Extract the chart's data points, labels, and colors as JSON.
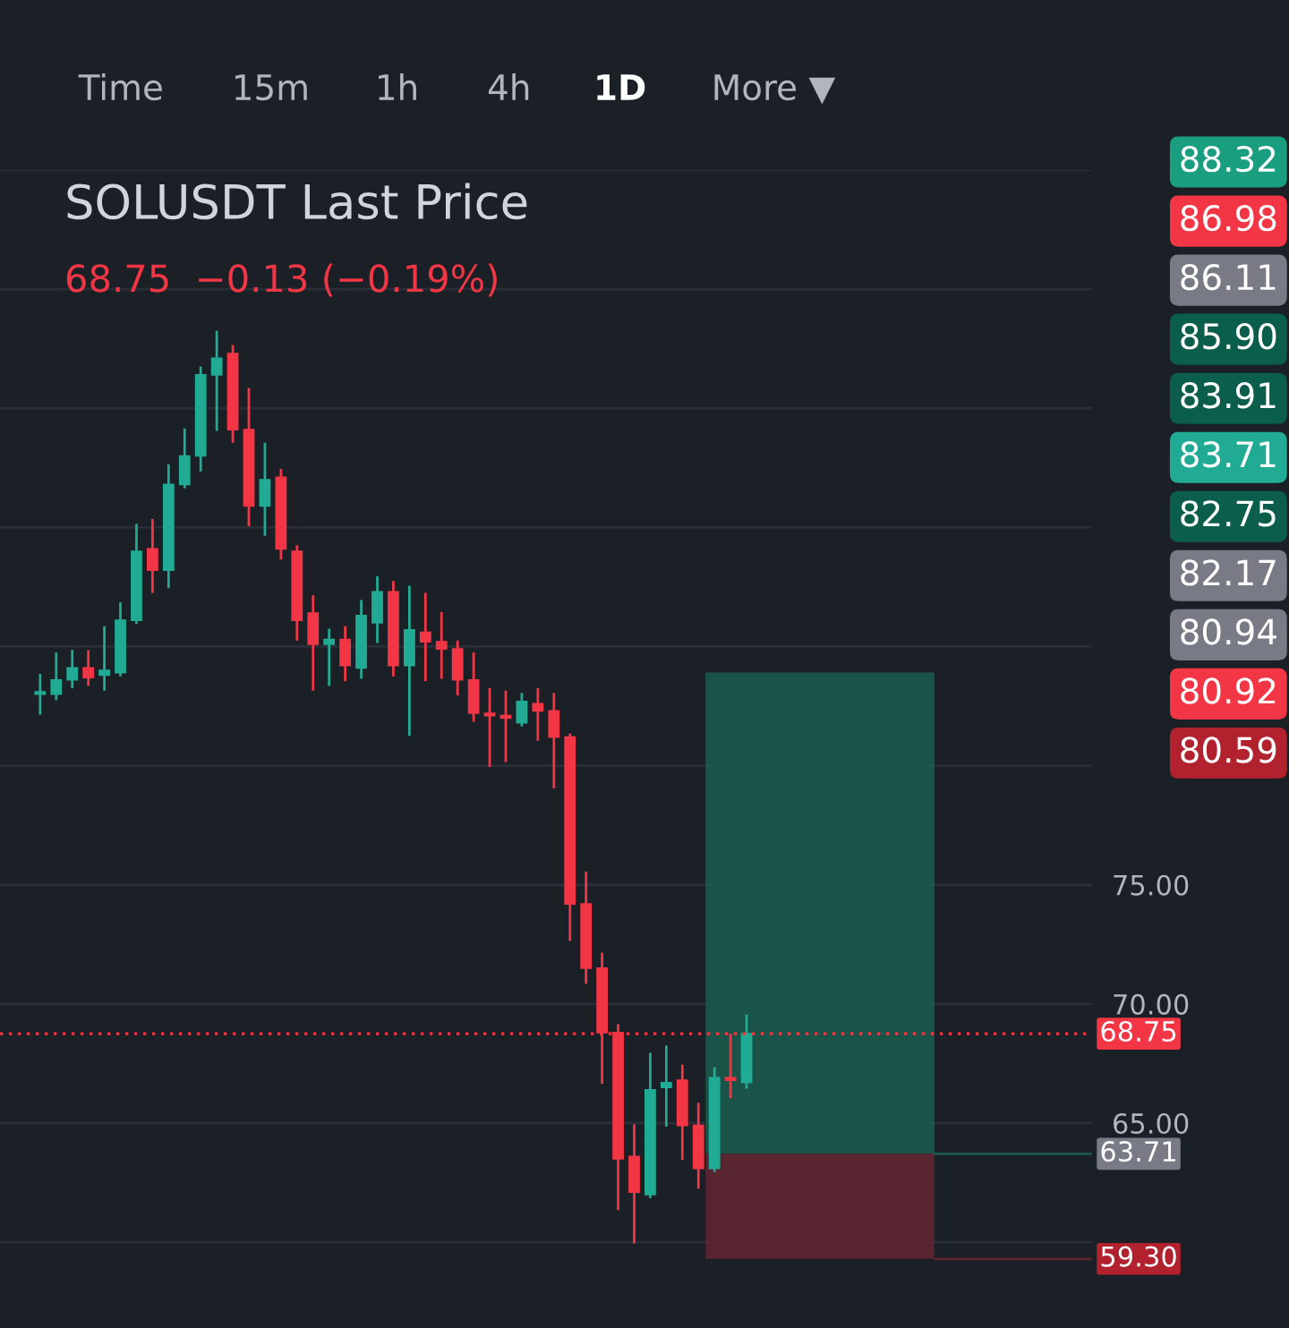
{
  "chart_data": {
    "type": "candlestick",
    "title": "SOLUSDT Last Price",
    "subtitle": "68.75  −0.13 (−0.19%)",
    "categories": [
      null,
      null,
      null,
      null,
      null,
      null,
      null,
      null,
      null,
      null,
      null,
      null,
      null,
      null,
      null,
      null,
      null,
      null,
      null,
      null,
      null,
      null,
      null,
      null,
      null,
      null,
      null,
      null,
      null,
      null,
      null,
      null,
      null,
      null,
      null,
      null,
      null,
      null,
      null,
      null,
      null,
      null,
      null,
      null,
      null,
      null,
      null,
      null,
      null,
      null,
      null,
      null,
      null,
      null,
      null,
      null,
      null,
      null,
      null,
      null,
      null,
      null,
      null,
      null,
      null,
      null,
      null,
      null
    ],
    "ohlc": [
      null,
      null,
      [
        83.0,
        83.8,
        82.2,
        83.1
      ],
      [
        83.0,
        84.7,
        82.8,
        83.6
      ],
      [
        83.6,
        84.8,
        83.3,
        84.1
      ],
      [
        84.1,
        84.8,
        83.4,
        83.7
      ],
      [
        83.8,
        85.8,
        83.2,
        84.0
      ],
      [
        83.9,
        86.8,
        83.8,
        86.1
      ],
      [
        86.1,
        90.1,
        86.0,
        89.0
      ],
      [
        89.1,
        90.3,
        87.3,
        88.2
      ],
      [
        88.2,
        92.6,
        87.5,
        91.8
      ],
      [
        91.8,
        94.1,
        91.7,
        93.0
      ],
      [
        93.0,
        96.7,
        92.4,
        96.4
      ],
      [
        96.4,
        98.2,
        94.1,
        97.1
      ],
      [
        97.3,
        97.6,
        93.6,
        94.1
      ],
      [
        94.1,
        95.8,
        90.1,
        90.9
      ],
      [
        90.9,
        93.5,
        89.7,
        92.0
      ],
      [
        92.1,
        92.4,
        88.7,
        89.1
      ],
      [
        89.0,
        89.2,
        85.3,
        86.1
      ],
      [
        86.4,
        87.1,
        83.2,
        85.1
      ],
      [
        85.1,
        85.7,
        83.4,
        85.3
      ],
      [
        85.3,
        85.8,
        83.6,
        84.2
      ],
      [
        84.1,
        86.9,
        83.7,
        86.3
      ],
      [
        86.0,
        87.9,
        85.2,
        87.3
      ],
      [
        87.3,
        87.7,
        83.8,
        84.2
      ],
      [
        84.2,
        87.5,
        81.3,
        85.7
      ],
      [
        85.6,
        87.2,
        83.6,
        85.2
      ],
      [
        85.2,
        86.4,
        83.7,
        84.9
      ],
      [
        84.9,
        85.2,
        83.0,
        83.6
      ],
      [
        83.6,
        84.7,
        81.9,
        82.2
      ],
      [
        82.2,
        83.2,
        80.0,
        82.1
      ],
      [
        82.1,
        83.1,
        80.2,
        82.0
      ],
      [
        81.8,
        83.0,
        81.7,
        82.7
      ],
      [
        82.6,
        83.2,
        81.1,
        82.3
      ],
      [
        82.3,
        83.0,
        79.1,
        81.2
      ],
      [
        81.2,
        81.3,
        72.7,
        74.2
      ],
      [
        74.2,
        75.5,
        70.9,
        71.5
      ],
      [
        71.5,
        72.1,
        66.7,
        68.8
      ],
      [
        68.8,
        69.1,
        61.4,
        63.5
      ],
      [
        63.6,
        64.9,
        60.0,
        62.1
      ],
      [
        62.0,
        67.9,
        61.9,
        66.4
      ],
      [
        66.5,
        68.2,
        64.9,
        66.7
      ],
      [
        66.8,
        67.4,
        63.5,
        64.9
      ],
      [
        64.9,
        65.8,
        62.3,
        63.1
      ],
      [
        63.1,
        67.3,
        63.0,
        66.9
      ],
      [
        66.9,
        68.7,
        66.1,
        66.8
      ],
      [
        66.7,
        69.5,
        66.5,
        68.75
      ],
      null,
      null,
      null,
      null,
      null,
      null,
      null,
      null,
      null,
      null,
      null,
      null,
      null,
      null,
      null,
      null,
      null,
      null,
      null,
      null,
      null
    ],
    "ylim": [
      56.4,
      105
    ],
    "yticks": [
      {
        "value": 60,
        "label": null
      },
      {
        "value": 65,
        "label": "65.00"
      },
      {
        "value": 70,
        "label": "70.00"
      },
      {
        "value": 75,
        "label": "75.00"
      },
      {
        "value": 80,
        "label": null
      },
      {
        "value": 85,
        "label": null
      },
      {
        "value": 90,
        "label": null
      },
      {
        "value": 95,
        "label": null
      },
      {
        "value": 100,
        "label": null
      },
      {
        "value": 105,
        "label": null
      }
    ],
    "tick_labels": "y",
    "grid": "y",
    "ref_lines": [
      {
        "axis": "y",
        "value": 68.75,
        "label": "68.75",
        "color": "#f23645",
        "line_style": "dotted"
      }
    ],
    "bands": [
      {
        "axis": "y",
        "from": 63.71,
        "to": 83.91,
        "color": "#1b5a4c",
        "label": "63.71"
      },
      {
        "axis": "y",
        "from": 59.3,
        "to": 63.71,
        "color": "#5e2531",
        "label": "59.30"
      }
    ],
    "annotations": [
      "Time",
      "15m",
      "1h",
      "4h",
      "1D",
      "More ▼",
      "88.32",
      "86.98",
      "86.11",
      "85.90",
      "83.91",
      "83.71",
      "82.75",
      "82.17",
      "80.94",
      "80.92",
      "80.59"
    ]
  }
}
